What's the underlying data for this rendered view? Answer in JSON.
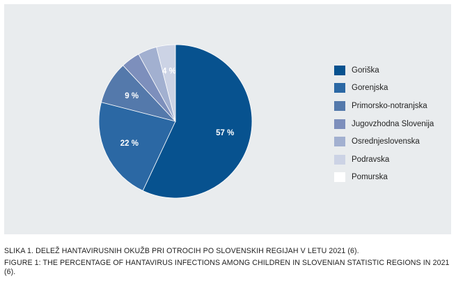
{
  "chart_data": {
    "type": "pie",
    "categories": [
      "Goriška",
      "Gorenjska",
      "Primorsko-notranjska",
      "Jugovzhodna Slovenija",
      "Osrednjeslovenska",
      "Podravska",
      "Pomurska"
    ],
    "values": [
      57,
      22,
      9,
      4,
      4,
      4,
      0
    ],
    "labels": [
      "57 %",
      "22 %",
      "9 %",
      "",
      "",
      "4 %",
      ""
    ],
    "colors": [
      "#07528f",
      "#2b68a4",
      "#5479ab",
      "#7d8fbc",
      "#a2b0d0",
      "#ccd3e5",
      "#ffffff"
    ],
    "start": "top",
    "direction": "clockwise",
    "legend_position": "right"
  },
  "captions": {
    "slovene": "SLIKA 1. DELEŽ HANTAVIRUSNIH OKUŽB PRI OTROCIH PO SLOVENSKIH REGIJAH V LETU 2021 (6).",
    "english": "FIGURE 1: THE PERCENTAGE OF HANTAVIRUS INFECTIONS AMONG CHILDREN IN SLOVENIAN STATISTIC REGIONS IN 2021 (6)."
  }
}
